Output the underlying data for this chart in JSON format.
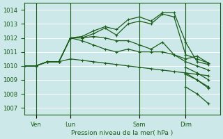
{
  "bg_color": "#cce8e8",
  "grid_color": "#ffffff",
  "line_color": "#1a5c1a",
  "ylim": [
    1006.5,
    1014.5
  ],
  "yticks": [
    1007,
    1008,
    1009,
    1010,
    1011,
    1012,
    1013,
    1014
  ],
  "xlabel": "Pression niveau de la mer( hPa )",
  "xtick_labels": [
    "Ven",
    "Lun",
    "Sam",
    "Dim"
  ],
  "xtick_positions": [
    1,
    4,
    10,
    14
  ],
  "vlines": [
    1,
    4,
    10,
    14
  ],
  "xlim": [
    0,
    17
  ],
  "series": [
    {
      "x": [
        0,
        1,
        2,
        3,
        4,
        5,
        6,
        7,
        8,
        9,
        10,
        11,
        12,
        13,
        14,
        15,
        16
      ],
      "y": [
        1010.0,
        1010.0,
        1010.3,
        1010.3,
        1012.0,
        1012.1,
        1012.5,
        1012.8,
        1012.6,
        1013.3,
        1013.5,
        1013.2,
        1013.8,
        1013.8,
        1011.7,
        1010.3,
        1010.1
      ]
    },
    {
      "x": [
        0,
        1,
        2,
        3,
        4,
        5,
        6,
        7,
        8,
        9,
        10,
        11,
        12,
        13,
        14,
        15,
        16
      ],
      "y": [
        1010.0,
        1010.0,
        1010.3,
        1010.3,
        1012.0,
        1012.0,
        1012.3,
        1012.7,
        1012.2,
        1013.0,
        1013.2,
        1013.0,
        1013.7,
        1013.5,
        1010.8,
        1010.5,
        1010.2
      ]
    },
    {
      "x": [
        0,
        1,
        2,
        3,
        4,
        5,
        6,
        7,
        8,
        9,
        10,
        11,
        12,
        13,
        14,
        15,
        16
      ],
      "y": [
        1010.0,
        1010.0,
        1010.3,
        1010.3,
        1012.0,
        1012.0,
        1012.1,
        1012.0,
        1011.8,
        1011.8,
        1011.5,
        1011.2,
        1011.7,
        1010.8,
        1010.5,
        1010.7,
        1010.2
      ]
    },
    {
      "x": [
        0,
        1,
        2,
        3,
        4,
        5,
        6,
        7,
        8,
        9,
        10,
        11,
        12,
        13,
        14,
        15,
        16
      ],
      "y": [
        1010.0,
        1010.0,
        1010.3,
        1010.3,
        1012.0,
        1011.8,
        1011.5,
        1011.2,
        1011.0,
        1011.2,
        1011.0,
        1011.0,
        1011.0,
        1010.8,
        1010.3,
        1010.0,
        1009.7
      ]
    },
    {
      "x": [
        0,
        1,
        2,
        3,
        4,
        5,
        6,
        7,
        8,
        9,
        10,
        11,
        12,
        13,
        14,
        15,
        16
      ],
      "y": [
        1010.0,
        1010.0,
        1010.3,
        1010.3,
        1010.5,
        1010.4,
        1010.3,
        1010.2,
        1010.1,
        1010.0,
        1009.9,
        1009.8,
        1009.7,
        1009.6,
        1009.5,
        1009.4,
        1009.3
      ]
    },
    {
      "x": [
        14,
        15,
        16
      ],
      "y": [
        1008.5,
        1008.0,
        1007.3
      ]
    },
    {
      "x": [
        14,
        15,
        16
      ],
      "y": [
        1009.5,
        1009.0,
        1008.4
      ]
    },
    {
      "x": [
        14,
        15,
        16
      ],
      "y": [
        1009.9,
        1009.5,
        1009.0
      ]
    },
    {
      "x": [
        14,
        15,
        16
      ],
      "y": [
        1009.4,
        1009.0,
        1008.5
      ]
    }
  ]
}
